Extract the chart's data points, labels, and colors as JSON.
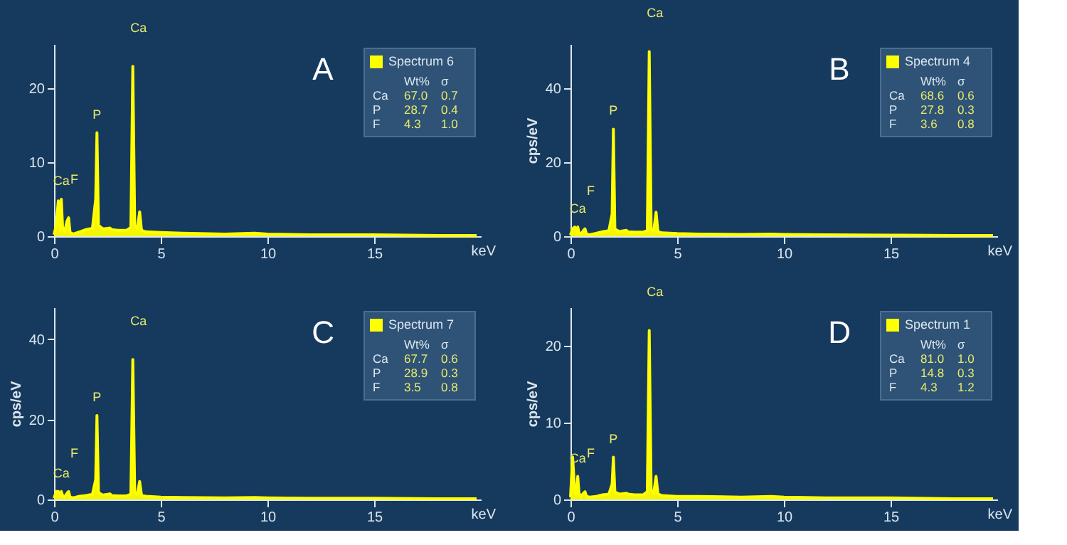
{
  "chart_data": [
    {
      "type": "area",
      "title": "A",
      "xlabel": "keV",
      "x": [
        0,
        0.1,
        0.2,
        0.28,
        0.34,
        0.4,
        0.5,
        0.6,
        0.68,
        0.75,
        0.9,
        1.2,
        1.5,
        1.8,
        1.95,
        2.01,
        2.08,
        2.2,
        2.3,
        2.62,
        2.7,
        3.0,
        3.4,
        3.6,
        3.69,
        3.78,
        3.9,
        4.01,
        4.1,
        4.3,
        5,
        6,
        8,
        9.4,
        10,
        12,
        15,
        18,
        19.8
      ],
      "series": [
        {
          "name": "Spectrum 6",
          "color": "#ffff00",
          "values": [
            0.2,
            1.5,
            4.8,
            0.8,
            5,
            1.2,
            0.6,
            2,
            2.5,
            0.5,
            0.3,
            0.6,
            0.9,
            1.1,
            5,
            14,
            1.5,
            1.2,
            1,
            1.1,
            0.9,
            0.8,
            0.8,
            1.2,
            23,
            1.5,
            1,
            3.3,
            0.8,
            0.6,
            0.5,
            0.4,
            0.3,
            0.4,
            0.3,
            0.2,
            0.2,
            0.1,
            0.1
          ]
        }
      ],
      "xlim": [
        0,
        20
      ],
      "xticks": [
        0,
        5,
        10,
        15
      ],
      "ylim": [
        0,
        26
      ],
      "yticks": [
        0,
        10,
        20
      ],
      "legend": "top right",
      "annotations": [
        "Wt%",
        "σ",
        "Ca",
        "67.0",
        "0.7",
        "P",
        "28.7",
        "0.4",
        "F",
        "4.3",
        "1.0",
        {
          "text": "Ca",
          "x": 0.34,
          "y": 5
        },
        {
          "text": "F",
          "x": 0.68,
          "y": 2.5
        },
        {
          "text": "P",
          "x": 2.01,
          "y": 14
        },
        {
          "text": "Ca",
          "x": 3.69,
          "y": 23
        }
      ]
    },
    {
      "type": "area",
      "title": "B",
      "xlabel": "keV",
      "ylabel": "cps/eV",
      "x": [
        0,
        0.1,
        0.2,
        0.28,
        0.34,
        0.4,
        0.5,
        0.6,
        0.68,
        0.75,
        0.9,
        1.2,
        1.5,
        1.8,
        1.95,
        2.01,
        2.08,
        2.2,
        2.3,
        2.62,
        2.7,
        3.0,
        3.4,
        3.6,
        3.69,
        3.78,
        3.9,
        4.01,
        4.1,
        4.3,
        5,
        6,
        8,
        9.4,
        10,
        12,
        15,
        18,
        19.8
      ],
      "series": [
        {
          "name": "Spectrum 4",
          "color": "#ffff00",
          "values": [
            0.3,
            2,
            2.5,
            0.8,
            2.5,
            1,
            0.6,
            1.5,
            2,
            0.6,
            0.4,
            0.8,
            1.2,
            1.5,
            6,
            29,
            2,
            1.5,
            1.3,
            1.6,
            1.2,
            1.1,
            1.1,
            1.5,
            50,
            2,
            1.3,
            6.5,
            1.2,
            0.9,
            0.7,
            0.6,
            0.5,
            0.6,
            0.5,
            0.4,
            0.3,
            0.2,
            0.2
          ]
        }
      ],
      "xlim": [
        0,
        20
      ],
      "xticks": [
        0,
        5,
        10,
        15
      ],
      "ylim": [
        0,
        52
      ],
      "yticks": [
        0,
        20,
        40
      ],
      "legend": "top right",
      "annotations": [
        "Wt%",
        "σ",
        "Ca",
        "68.6",
        "0.6",
        "P",
        "27.8",
        "0.3",
        "F",
        "3.6",
        "0.8",
        {
          "text": "Ca",
          "x": 0.34,
          "y": 2.5
        },
        {
          "text": "F",
          "x": 0.68,
          "y": 2
        },
        {
          "text": "P",
          "x": 2.01,
          "y": 29
        },
        {
          "text": "Ca",
          "x": 3.69,
          "y": 50
        }
      ]
    },
    {
      "type": "area",
      "title": "C",
      "xlabel": "keV",
      "ylabel": "cps/eV",
      "x": [
        0,
        0.1,
        0.2,
        0.28,
        0.34,
        0.4,
        0.5,
        0.6,
        0.68,
        0.75,
        0.9,
        1.2,
        1.5,
        1.8,
        1.95,
        2.01,
        2.08,
        2.2,
        2.3,
        2.62,
        2.7,
        3.0,
        3.4,
        3.6,
        3.69,
        3.78,
        3.9,
        4.01,
        4.1,
        4.3,
        5,
        6,
        8,
        9.4,
        10,
        12,
        15,
        18,
        19.8
      ],
      "series": [
        {
          "name": "Spectrum 7",
          "color": "#ffff00",
          "values": [
            0.3,
            2,
            2,
            0.8,
            2,
            1,
            0.6,
            1.5,
            2,
            0.6,
            0.4,
            0.8,
            1,
            1.3,
            5,
            21,
            1.8,
            1.3,
            1.1,
            1.4,
            1,
            0.9,
            0.9,
            1.3,
            35,
            1.8,
            1.2,
            4.5,
            1,
            0.8,
            0.6,
            0.5,
            0.4,
            0.5,
            0.4,
            0.3,
            0.3,
            0.2,
            0.2
          ]
        }
      ],
      "xlim": [
        0,
        20
      ],
      "xticks": [
        0,
        5,
        10,
        15
      ],
      "ylim": [
        0,
        48
      ],
      "yticks": [
        0,
        20,
        40
      ],
      "legend": "top right",
      "annotations": [
        "Wt%",
        "σ",
        "Ca",
        "67.7",
        "0.6",
        "P",
        "28.9",
        "0.3",
        "F",
        "3.5",
        "0.8",
        {
          "text": "Ca",
          "x": 0.34,
          "y": 2
        },
        {
          "text": "F",
          "x": 0.68,
          "y": 2
        },
        {
          "text": "P",
          "x": 2.01,
          "y": 21
        },
        {
          "text": "Ca",
          "x": 3.69,
          "y": 35
        }
      ]
    },
    {
      "type": "area",
      "title": "D",
      "xlabel": "keV",
      "ylabel": "cps/eV",
      "x": [
        0,
        0.1,
        0.2,
        0.28,
        0.34,
        0.4,
        0.5,
        0.6,
        0.68,
        0.75,
        0.9,
        1.2,
        1.5,
        1.8,
        1.95,
        2.01,
        2.08,
        2.2,
        2.3,
        2.62,
        2.7,
        3.0,
        3.4,
        3.6,
        3.69,
        3.78,
        3.9,
        4.01,
        4.1,
        4.3,
        5,
        6,
        8,
        9.4,
        10,
        12,
        15,
        18,
        19.8
      ],
      "series": [
        {
          "name": "Spectrum 1",
          "color": "#ffff00",
          "values": [
            0.3,
            5.5,
            1,
            0.6,
            3,
            0.8,
            0.4,
            0.8,
            1,
            0.4,
            0.3,
            0.4,
            0.6,
            0.7,
            2,
            5.5,
            1,
            0.8,
            0.7,
            0.8,
            0.7,
            0.6,
            0.6,
            1,
            22,
            1.2,
            0.8,
            3,
            0.7,
            0.5,
            0.4,
            0.4,
            0.3,
            0.4,
            0.3,
            0.2,
            0.2,
            0.1,
            0.1
          ]
        }
      ],
      "xlim": [
        0,
        20
      ],
      "xticks": [
        0,
        5,
        10,
        15
      ],
      "ylim": [
        0,
        25
      ],
      "yticks": [
        0,
        10,
        20
      ],
      "legend": "top right",
      "annotations": [
        "Wt%",
        "σ",
        "Ca",
        "81.0",
        "1.0",
        "P",
        "14.8",
        "0.3",
        "F",
        "4.3",
        "1.2",
        {
          "text": "Ca",
          "x": 0.34,
          "y": 3
        },
        {
          "text": "F",
          "x": 0.68,
          "y": 1
        },
        {
          "text": "P",
          "x": 2.01,
          "y": 5.5
        },
        {
          "text": "Ca",
          "x": 3.69,
          "y": 22
        }
      ]
    }
  ]
}
